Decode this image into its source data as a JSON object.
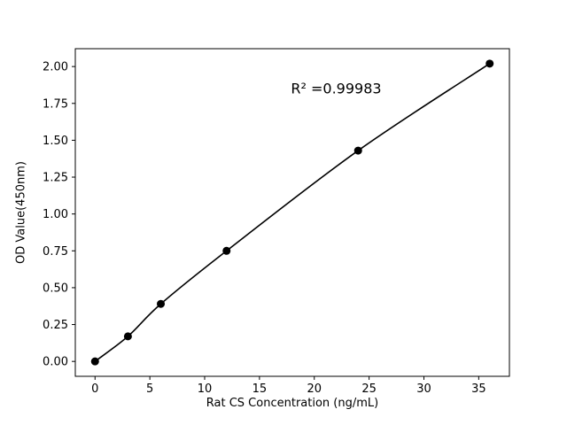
{
  "chart_data": {
    "type": "scatter",
    "title": "",
    "xlabel": "Rat CS Concentration (ng/mL)",
    "ylabel": "OD Value(450nm)",
    "x": [
      0,
      3,
      6,
      12,
      24,
      36
    ],
    "y": [
      0.0,
      0.17,
      0.39,
      0.75,
      1.43,
      2.02
    ],
    "curve": "smooth fitted line through all points",
    "xlim": [
      -1.8,
      37.8
    ],
    "ylim": [
      -0.101,
      2.121
    ],
    "xticks": [
      0,
      5,
      10,
      15,
      20,
      25,
      30,
      35
    ],
    "yticks": [
      0.0,
      0.25,
      0.5,
      0.75,
      1.0,
      1.25,
      1.5,
      1.75,
      2.0
    ],
    "grid": false,
    "legend": null,
    "annotation": {
      "text": "R² =0.99983",
      "x": 22,
      "y": 1.85
    },
    "marker_color": "#000000",
    "line_color": "#000000",
    "background_color": "#ffffff"
  }
}
